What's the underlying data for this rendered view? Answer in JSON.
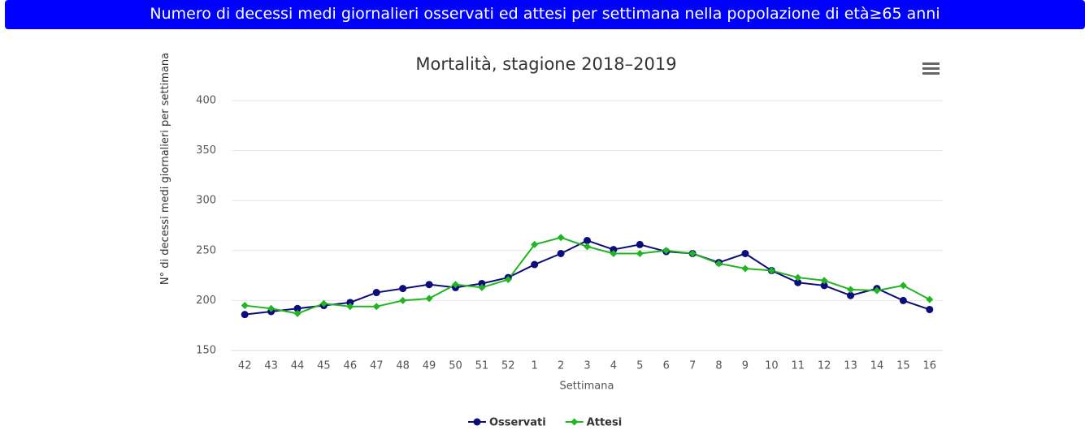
{
  "header": {
    "title": "Numero di decessi medi giornalieri osservati ed attesi per settimana nella popolazione di età≥65 anni"
  },
  "chart_data": {
    "type": "line",
    "title": "Mortalità, stagione 2018–2019",
    "x_label": "Settimana",
    "y_label": "N° di decessi medi giornalieri per settimana",
    "categories": [
      "42",
      "43",
      "44",
      "45",
      "46",
      "47",
      "48",
      "49",
      "50",
      "51",
      "52",
      "1",
      "2",
      "3",
      "4",
      "5",
      "6",
      "7",
      "8",
      "9",
      "10",
      "11",
      "12",
      "13",
      "14",
      "15",
      "16"
    ],
    "series": [
      {
        "name": "Osservati",
        "color": "#0c0c7a",
        "marker": "circle",
        "values": [
          186,
          189,
          192,
          195,
          198,
          208,
          212,
          216,
          213,
          217,
          223,
          236,
          247,
          260,
          251,
          256,
          249,
          247,
          238,
          247,
          230,
          218,
          215,
          205,
          212,
          200,
          191
        ]
      },
      {
        "name": "Attesi",
        "color": "#22b522",
        "marker": "diamond",
        "values": [
          195,
          192,
          187,
          197,
          194,
          194,
          200,
          202,
          216,
          213,
          221,
          256,
          263,
          254,
          247,
          247,
          250,
          247,
          237,
          232,
          230,
          223,
          220,
          211,
          210,
          215,
          201
        ]
      }
    ],
    "ylim": [
      150,
      400
    ],
    "yticks": [
      150,
      200,
      250,
      300,
      350,
      400
    ],
    "grid": true
  }
}
